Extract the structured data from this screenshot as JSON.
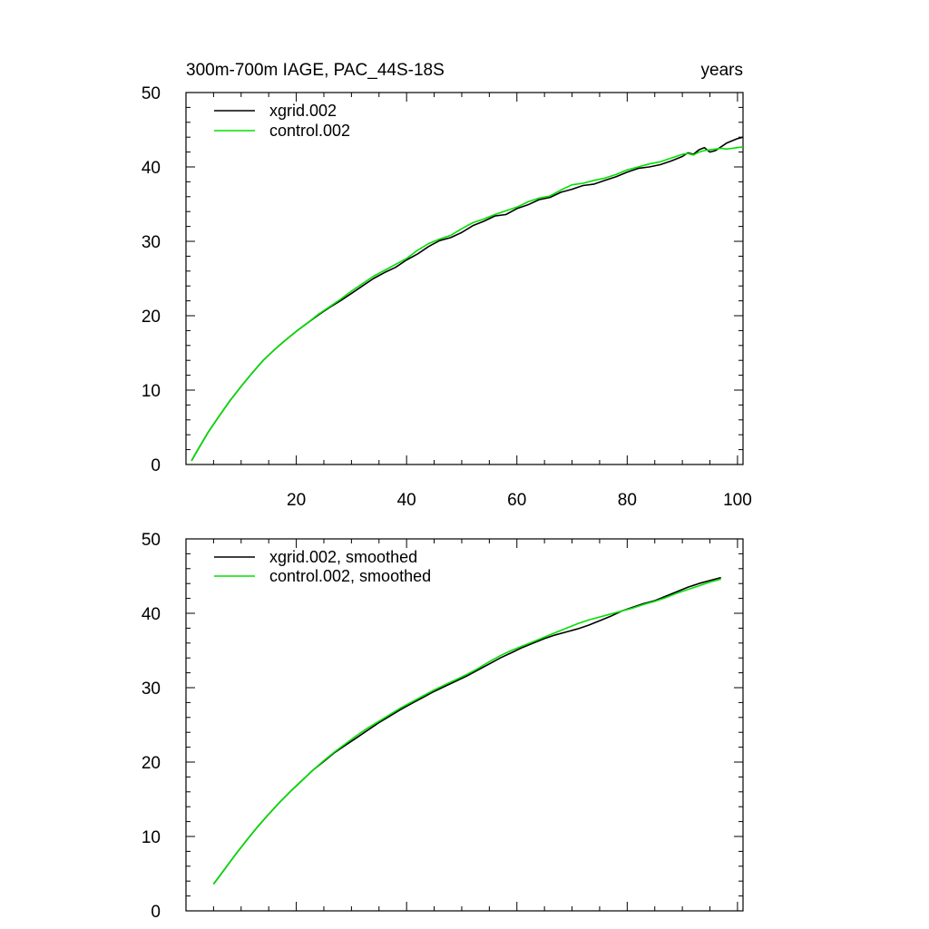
{
  "chart_data": [
    {
      "type": "line",
      "title": "300m-700m IAGE, PAC_44S-18S",
      "units": "years",
      "xlim": [
        0,
        101
      ],
      "ylim": [
        0,
        50
      ],
      "xticks": [
        20,
        40,
        60,
        80,
        100
      ],
      "yticks": [
        0,
        10,
        20,
        30,
        40,
        50
      ],
      "legend_position": "top-left",
      "series": [
        {
          "name": "xgrid.002",
          "color": "#000000",
          "x": [
            1,
            2,
            4,
            6,
            8,
            10,
            12,
            14,
            16,
            18,
            20,
            22,
            24,
            26,
            28,
            30,
            32,
            34,
            36,
            38,
            40,
            42,
            44,
            46,
            48,
            50,
            52,
            54,
            56,
            58,
            60,
            62,
            64,
            66,
            68,
            70,
            72,
            74,
            76,
            78,
            80,
            82,
            84,
            86,
            88,
            90,
            91,
            92,
            93,
            94,
            95,
            96,
            97,
            98,
            99,
            100,
            101
          ],
          "y": [
            0.5,
            1.8,
            4.3,
            6.5,
            8.6,
            10.5,
            12.3,
            14.0,
            15.4,
            16.7,
            17.9,
            19.0,
            20.1,
            21.1,
            22.0,
            23.0,
            24.0,
            25.0,
            25.8,
            26.5,
            27.5,
            28.3,
            29.3,
            30.1,
            30.5,
            31.2,
            32.1,
            32.7,
            33.4,
            33.6,
            34.4,
            34.9,
            35.6,
            35.9,
            36.6,
            37.0,
            37.5,
            37.7,
            38.2,
            38.7,
            39.3,
            39.8,
            40.0,
            40.3,
            40.8,
            41.4,
            41.9,
            41.7,
            42.3,
            42.6,
            42.0,
            42.2,
            42.7,
            43.2,
            43.5,
            43.8,
            44.0
          ]
        },
        {
          "name": "control.002",
          "color": "#00e000",
          "x": [
            1,
            2,
            4,
            6,
            8,
            10,
            12,
            14,
            16,
            18,
            20,
            22,
            24,
            26,
            28,
            30,
            32,
            34,
            36,
            38,
            40,
            42,
            44,
            46,
            48,
            50,
            52,
            54,
            56,
            58,
            60,
            62,
            64,
            66,
            68,
            70,
            72,
            74,
            76,
            78,
            80,
            82,
            84,
            86,
            88,
            90,
            91,
            92,
            93,
            94,
            95,
            96,
            97,
            98,
            99,
            100,
            101
          ],
          "y": [
            0.5,
            1.8,
            4.3,
            6.5,
            8.6,
            10.5,
            12.3,
            14.0,
            15.4,
            16.7,
            17.9,
            19.0,
            20.2,
            21.2,
            22.2,
            23.3,
            24.3,
            25.3,
            26.1,
            26.9,
            27.7,
            28.8,
            29.7,
            30.3,
            30.8,
            31.7,
            32.5,
            33.0,
            33.6,
            34.1,
            34.6,
            35.3,
            35.8,
            36.1,
            36.9,
            37.6,
            37.8,
            38.2,
            38.5,
            39.0,
            39.6,
            40.0,
            40.4,
            40.7,
            41.2,
            41.7,
            41.8,
            41.6,
            42.0,
            42.2,
            42.3,
            42.4,
            42.5,
            42.4,
            42.5,
            42.6,
            42.7
          ]
        }
      ]
    },
    {
      "type": "line",
      "xlim": [
        0,
        101
      ],
      "ylim": [
        0,
        50
      ],
      "xticks": [
        20,
        40,
        60,
        80,
        100
      ],
      "yticks": [
        0,
        10,
        20,
        30,
        40,
        50
      ],
      "legend_position": "top-left",
      "series": [
        {
          "name": "xgrid.002, smoothed",
          "color": "#000000",
          "x": [
            5,
            7,
            9,
            11,
            13,
            15,
            17,
            19,
            21,
            23,
            25,
            27,
            29,
            31,
            33,
            35,
            37,
            39,
            41,
            43,
            45,
            47,
            49,
            51,
            53,
            55,
            57,
            59,
            61,
            63,
            65,
            67,
            69,
            71,
            73,
            75,
            77,
            79,
            81,
            83,
            85,
            87,
            89,
            91,
            93,
            95,
            97
          ],
          "y": [
            3.6,
            5.6,
            7.6,
            9.5,
            11.3,
            13.0,
            14.6,
            16.1,
            17.5,
            18.9,
            20.1,
            21.3,
            22.3,
            23.3,
            24.3,
            25.3,
            26.2,
            27.1,
            27.9,
            28.7,
            29.5,
            30.2,
            30.9,
            31.6,
            32.4,
            33.2,
            34.0,
            34.7,
            35.4,
            36.0,
            36.6,
            37.1,
            37.5,
            37.9,
            38.4,
            39.0,
            39.6,
            40.3,
            40.8,
            41.3,
            41.7,
            42.3,
            42.9,
            43.5,
            44.0,
            44.4,
            44.8
          ]
        },
        {
          "name": "control.002, smoothed",
          "color": "#00e000",
          "x": [
            5,
            7,
            9,
            11,
            13,
            15,
            17,
            19,
            21,
            23,
            25,
            27,
            29,
            31,
            33,
            35,
            37,
            39,
            41,
            43,
            45,
            47,
            49,
            51,
            53,
            55,
            57,
            59,
            61,
            63,
            65,
            67,
            69,
            71,
            73,
            75,
            77,
            79,
            81,
            83,
            85,
            87,
            89,
            91,
            93,
            95,
            97
          ],
          "y": [
            3.6,
            5.6,
            7.6,
            9.5,
            11.3,
            13.0,
            14.6,
            16.1,
            17.5,
            18.9,
            20.2,
            21.4,
            22.5,
            23.6,
            24.6,
            25.5,
            26.4,
            27.3,
            28.1,
            28.9,
            29.7,
            30.4,
            31.1,
            31.8,
            32.6,
            33.5,
            34.3,
            35.0,
            35.6,
            36.2,
            36.8,
            37.4,
            38.0,
            38.6,
            39.1,
            39.5,
            39.9,
            40.3,
            40.7,
            41.2,
            41.6,
            42.1,
            42.7,
            43.2,
            43.7,
            44.2,
            44.6
          ]
        }
      ]
    }
  ]
}
